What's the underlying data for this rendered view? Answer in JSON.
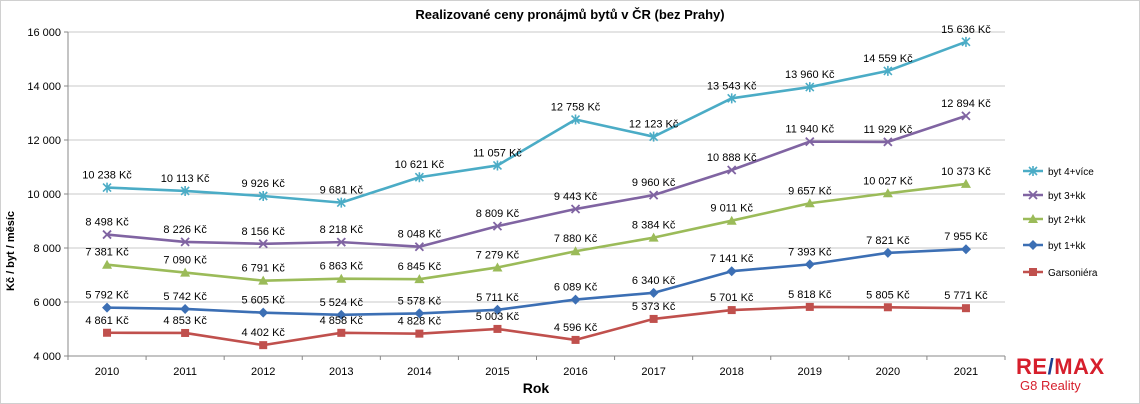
{
  "chart_data": {
    "type": "line",
    "title": "Realizované ceny pronájmů bytů v ČR (bez Prahy)",
    "xlabel": "Rok",
    "ylabel": "Kč / byt / měsíc",
    "ylim": [
      4000,
      16000
    ],
    "yticks": [
      "4 000",
      "6 000",
      "8 000",
      "10 000",
      "12 000",
      "14 000",
      "16 000"
    ],
    "ytick_values": [
      4000,
      6000,
      8000,
      10000,
      12000,
      14000,
      16000
    ],
    "categories": [
      "2010",
      "2011",
      "2012",
      "2013",
      "2014",
      "2015",
      "2016",
      "2017",
      "2018",
      "2019",
      "2020",
      "2021"
    ],
    "grid": "horizontal",
    "legend_position": "right",
    "series": [
      {
        "name": "byt 4+více",
        "color": "#4bacc6",
        "marker": "star",
        "values": [
          10238,
          10113,
          9926,
          9681,
          10621,
          11057,
          12758,
          12123,
          13543,
          13960,
          14559,
          15636
        ],
        "labels": [
          "10 238 Kč",
          "10 113 Kč",
          "9 926 Kč",
          "9 681 Kč",
          "10 621 Kč",
          "11 057 Kč",
          "12 758 Kč",
          "12 123 Kč",
          "13 543 Kč",
          "13 960 Kč",
          "14 559 Kč",
          "15 636 Kč"
        ]
      },
      {
        "name": "byt 3+kk",
        "color": "#8064a2",
        "marker": "x",
        "values": [
          8498,
          8226,
          8156,
          8218,
          8048,
          8809,
          9443,
          9960,
          10888,
          11940,
          11929,
          12894
        ],
        "labels": [
          "8 498 Kč",
          "8 226 Kč",
          "8 156 Kč",
          "8 218 Kč",
          "8 048 Kč",
          "8 809 Kč",
          "9 443 Kč",
          "9 960 Kč",
          "10 888 Kč",
          "11 940 Kč",
          "11 929 Kč",
          "12 894 Kč"
        ]
      },
      {
        "name": "byt 2+kk",
        "color": "#9bbb59",
        "marker": "triangle",
        "values": [
          7381,
          7090,
          6791,
          6863,
          6845,
          7279,
          7880,
          8384,
          9011,
          9657,
          10027,
          10373
        ],
        "labels": [
          "7 381 Kč",
          "7 090 Kč",
          "6 791 Kč",
          "6 863 Kč",
          "6 845 Kč",
          "7 279 Kč",
          "7 880 Kč",
          "8 384 Kč",
          "9 011 Kč",
          "9 657 Kč",
          "10 027 Kč",
          "10 373 Kč"
        ]
      },
      {
        "name": "byt 1+kk",
        "color": "#3c6fb4",
        "marker": "diamond",
        "values": [
          5792,
          5742,
          5605,
          5524,
          5578,
          5711,
          6089,
          6340,
          7141,
          7393,
          7821,
          7955
        ],
        "labels": [
          "5 792 Kč",
          "5 742 Kč",
          "5 605 Kč",
          "5 524 Kč",
          "5 578 Kč",
          "5 711 Kč",
          "6 089 Kč",
          "6 340 Kč",
          "7 141 Kč",
          "7 393 Kč",
          "7 821 Kč",
          "7 955 Kč"
        ]
      },
      {
        "name": "Garsoniéra",
        "color": "#c0504d",
        "marker": "square",
        "values": [
          4861,
          4853,
          4402,
          4858,
          4828,
          5003,
          4596,
          5373,
          5701,
          5818,
          5805,
          5771
        ],
        "labels": [
          "4 861 Kč",
          "4 853 Kč",
          "4 402 Kč",
          "4 858 Kč",
          "4 828 Kč",
          "5 003 Kč",
          "4 596 Kč",
          "5 373 Kč",
          "5 701 Kč",
          "5 818 Kč",
          "5 805 Kč",
          "5 771 Kč"
        ]
      }
    ]
  },
  "logo": {
    "text": "RE/MAX",
    "subtitle": "G8 Reality",
    "color_red": "#d61f2c",
    "color_blue": "#1d3e8f"
  }
}
